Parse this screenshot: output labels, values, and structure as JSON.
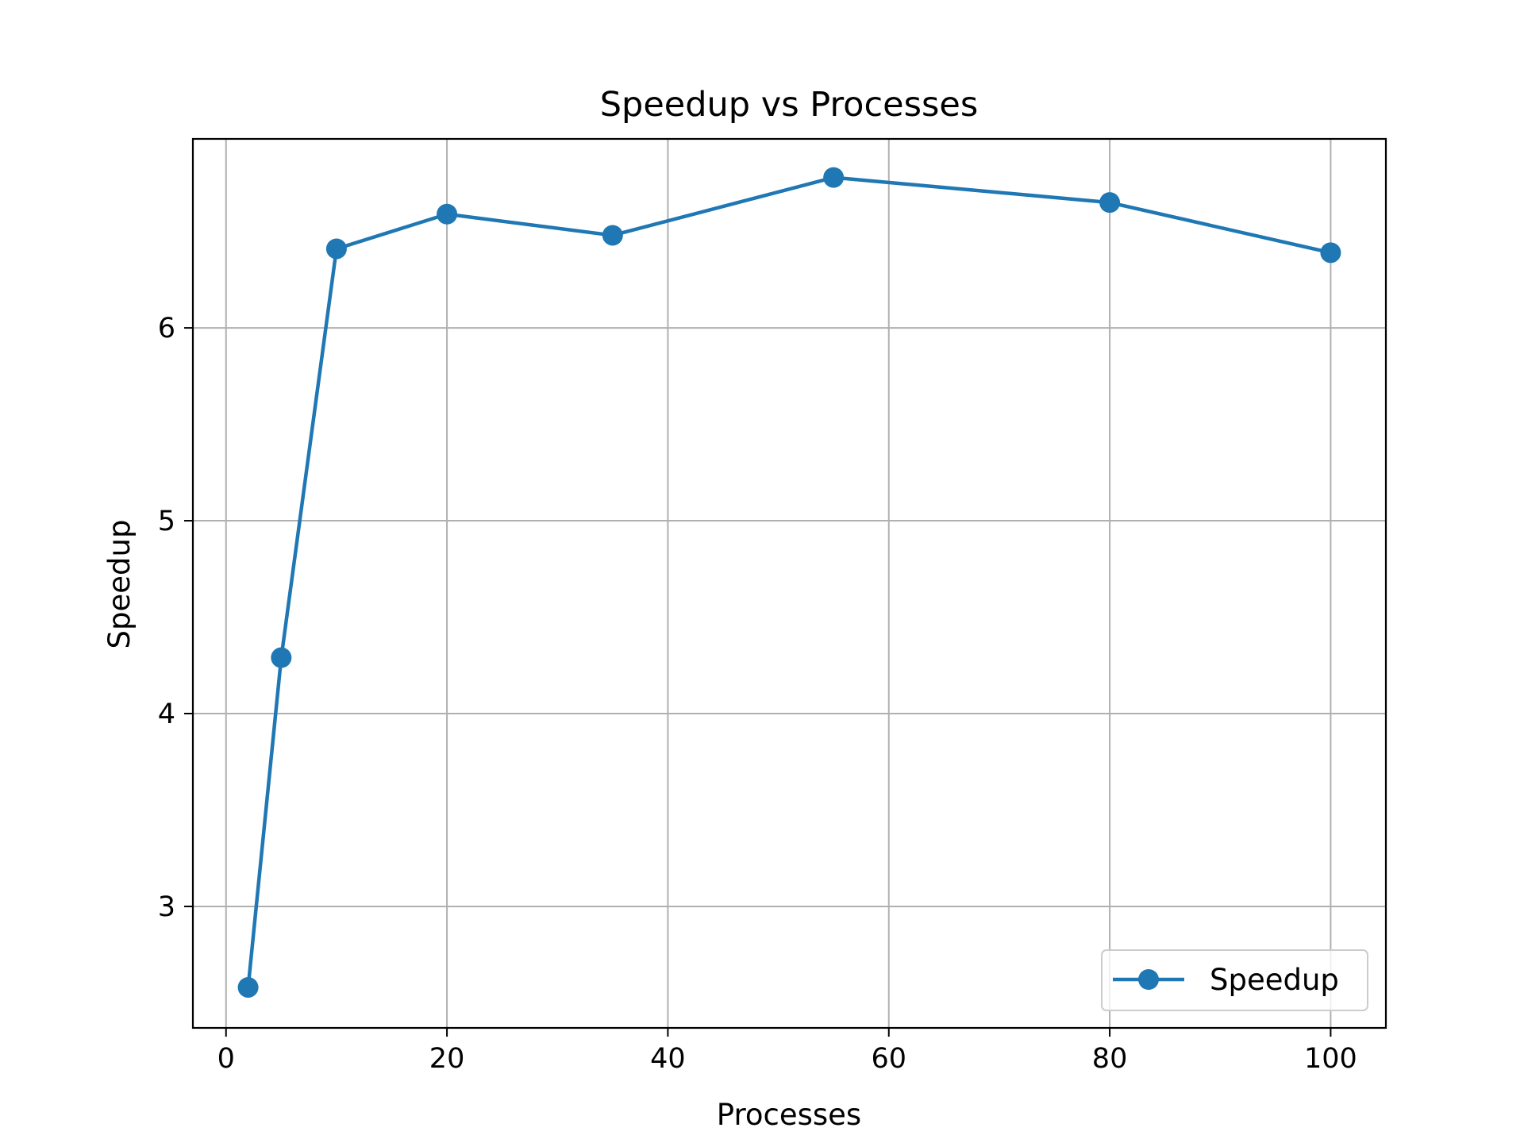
{
  "chart_data": {
    "type": "line",
    "title": "Speedup vs Processes",
    "xlabel": "Processes",
    "ylabel": "Speedup",
    "xlim": [
      -3,
      105
    ],
    "ylim": [
      2.37,
      6.98
    ],
    "xticks": [
      0,
      20,
      40,
      60,
      80,
      100
    ],
    "yticks": [
      3,
      4,
      5,
      6
    ],
    "grid": true,
    "legend": {
      "placement": "lower-right",
      "entries": [
        "Speedup"
      ]
    },
    "series": [
      {
        "name": "Speedup",
        "color": "#1f77b4",
        "marker": "circle",
        "x": [
          2,
          5,
          10,
          20,
          35,
          55,
          80,
          100
        ],
        "y": [
          2.58,
          4.29,
          6.41,
          6.59,
          6.48,
          6.78,
          6.65,
          6.39
        ]
      }
    ]
  }
}
